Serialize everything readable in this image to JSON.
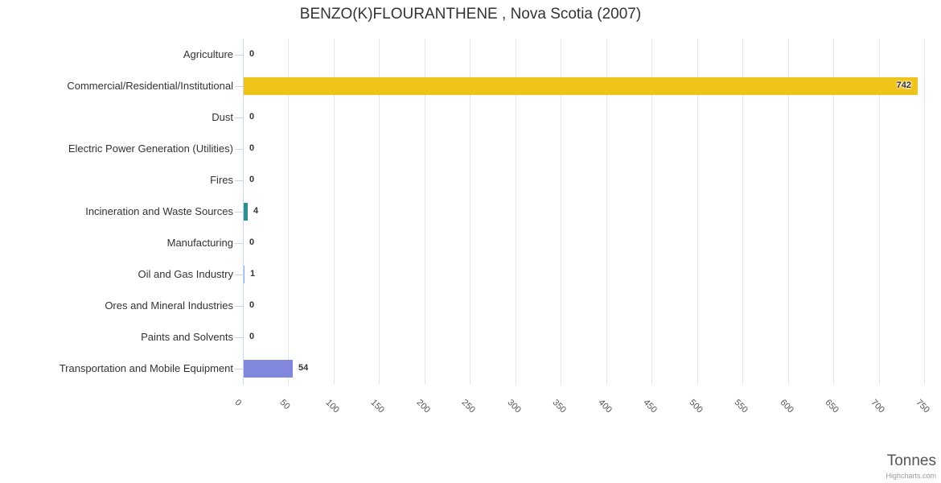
{
  "chart_data": {
    "type": "bar",
    "title": "BENZO(K)FLOURANTHENE , Nova Scotia (2007)",
    "categories": [
      "Agriculture",
      "Commercial/Residential/Institutional",
      "Dust",
      "Electric Power Generation (Utilities)",
      "Fires",
      "Incineration and Waste Sources",
      "Manufacturing",
      "Oil and Gas Industry",
      "Ores and Mineral Industries",
      "Paints and Solvents",
      "Transportation and Mobile Equipment"
    ],
    "values": [
      0,
      742,
      0,
      0,
      0,
      4,
      0,
      1,
      0,
      0,
      54
    ],
    "bar_colors": [
      "#7cb5ec",
      "#efc318",
      "#7cb5ec",
      "#7cb5ec",
      "#7cb5ec",
      "#2b908f",
      "#7cb5ec",
      "#7cb5ec",
      "#7cb5ec",
      "#7cb5ec",
      "#8187dc"
    ],
    "xlabel": "Tonnes",
    "ylabel": "",
    "xlim": [
      0,
      750
    ],
    "x_ticks": [
      0,
      50,
      100,
      150,
      200,
      250,
      300,
      350,
      400,
      450,
      500,
      550,
      600,
      650,
      700,
      750
    ],
    "x_tick_rotation": 45,
    "grid": true,
    "legend": false
  },
  "credit": "Highcharts.com",
  "theme": {
    "background": "#ffffff",
    "title_color": "#333333",
    "category_label_color": "#333333",
    "tick_label_color": "#555555",
    "axis_line_color": "#ccd6eb",
    "gridline_color": "#e6e6e6",
    "data_label_color": "#333333",
    "axis_title_color": "#555555",
    "credit_color": "#999999"
  }
}
